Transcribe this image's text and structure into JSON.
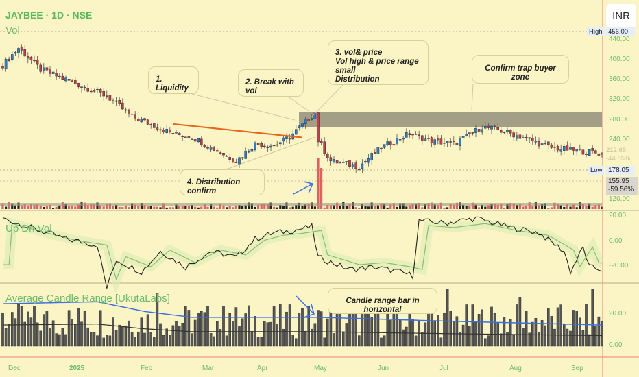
{
  "header": {
    "symbol_title": "JAYBEE · 1D · NSE",
    "currency_button": "INR"
  },
  "panes": {
    "volume_label": "Vol",
    "updn_label": "Up Dn Vol",
    "acr_label": "Average Candle Range [UkutaLabs]"
  },
  "price_axis": {
    "ticks": [
      "440.00",
      "400.00",
      "360.00",
      "320.00",
      "280.00",
      "240.00",
      "120.00"
    ],
    "high_tag": "High",
    "high_value": "456.00",
    "low_tag": "Low",
    "low_value": "178.05",
    "last_price": "212.65",
    "last_change": "-44.85%",
    "current_price": "155.95",
    "current_change": "-59.56%"
  },
  "updn_axis": {
    "ticks": [
      "20.00",
      "0.00",
      "-20.00"
    ]
  },
  "acr_axis": {
    "ticks": [
      "20.00",
      "0.00"
    ]
  },
  "time_axis": [
    "Dec",
    "2025",
    "Feb",
    "Mar",
    "Apr",
    "May",
    "Jun",
    "Jul",
    "Aug",
    "Sep"
  ],
  "annotations": {
    "liquidity": "1. Liquidity",
    "break": "2. Break with vol",
    "volprice": [
      "3.  vol& price",
      "Vol high & price range small",
      "Distribution"
    ],
    "distribution": "4. Distribution confirm",
    "trap": "Confirm trap buyer zone",
    "candle_range": "Candle range bar in horizontal"
  },
  "colors": {
    "up": "#2e7dc9",
    "down": "#c0404a",
    "trend": "#e8641c",
    "zone": "#a39e86",
    "axis_line": "#f08080",
    "ma": "#3a6fe0"
  },
  "chart_data": {
    "type": "candlestick",
    "price_range": [
      120,
      456
    ],
    "price_keypoints": [
      [
        0,
        389
      ],
      [
        5,
        423
      ],
      [
        12,
        380
      ],
      [
        20,
        360
      ],
      [
        33,
        327
      ],
      [
        41,
        286
      ],
      [
        54,
        252
      ],
      [
        60,
        245
      ],
      [
        66,
        224
      ],
      [
        74,
        197
      ],
      [
        80,
        231
      ],
      [
        86,
        228
      ],
      [
        91,
        245
      ],
      [
        95,
        270
      ],
      [
        99,
        293
      ],
      [
        100,
        238
      ],
      [
        104,
        197
      ],
      [
        113,
        186
      ],
      [
        120,
        224
      ],
      [
        129,
        252
      ],
      [
        135,
        238
      ],
      [
        143,
        231
      ],
      [
        152,
        265
      ],
      [
        155,
        262
      ],
      [
        161,
        252
      ],
      [
        174,
        224
      ],
      [
        183,
        217
      ],
      [
        190,
        212
      ]
    ],
    "zone": [
      265,
      295
    ],
    "trendline": [
      [
        54,
        271
      ],
      [
        95,
        244
      ]
    ],
    "updn_keypoints": [
      [
        0,
        22
      ],
      [
        8,
        15
      ],
      [
        20,
        5
      ],
      [
        30,
        0
      ],
      [
        33,
        -35
      ],
      [
        36,
        -12
      ],
      [
        44,
        -22
      ],
      [
        50,
        -5
      ],
      [
        58,
        -18
      ],
      [
        66,
        -5
      ],
      [
        74,
        -10
      ],
      [
        80,
        5
      ],
      [
        86,
        10
      ],
      [
        92,
        12
      ],
      [
        98,
        15
      ],
      [
        100,
        -10
      ],
      [
        110,
        -20
      ],
      [
        118,
        -18
      ],
      [
        126,
        -22
      ],
      [
        130,
        -25
      ],
      [
        132,
        20
      ],
      [
        140,
        18
      ],
      [
        150,
        22
      ],
      [
        160,
        15
      ],
      [
        170,
        10
      ],
      [
        178,
        -5
      ],
      [
        180,
        -22
      ],
      [
        184,
        -2
      ],
      [
        186,
        -18
      ],
      [
        190,
        -20
      ]
    ],
    "updn_range": [
      -30,
      25
    ],
    "acr_range": [
      0,
      32
    ],
    "acr_ma_keypoints": [
      [
        0,
        22
      ],
      [
        30,
        23
      ],
      [
        45,
        18
      ],
      [
        60,
        15
      ],
      [
        100,
        15
      ],
      [
        140,
        13
      ],
      [
        190,
        11
      ]
    ]
  }
}
